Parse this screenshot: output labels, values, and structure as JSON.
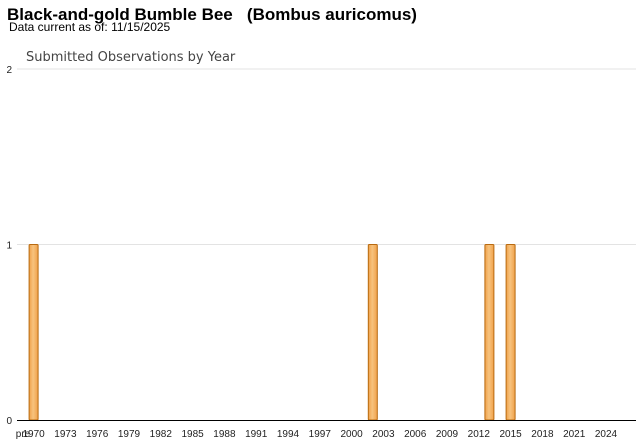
{
  "header": {
    "title": "Black-and-gold Bumble Bee   (Bombus auricomus)",
    "data_current_label": "Data current as of:",
    "data_current_date": "11/15/2025"
  },
  "colors": {
    "bar_fill": "#f0a14a",
    "bar_highlight": "#f7c37e",
    "bar_stroke": "#b86a10",
    "grid": "#e3e3e3",
    "axis": "#000000"
  },
  "chart_data": {
    "type": "bar",
    "title": "Submitted Observations by Year",
    "xlabel": "",
    "ylabel": "",
    "ylim": [
      0,
      2
    ],
    "y_ticks": [
      0,
      1,
      2
    ],
    "grid": true,
    "x_tick_labels": [
      "pre",
      "1970",
      "1973",
      "1976",
      "1979",
      "1982",
      "1985",
      "1988",
      "1991",
      "1994",
      "1997",
      "2000",
      "2003",
      "2006",
      "2009",
      "2012",
      "2015",
      "2018",
      "2021",
      "2024"
    ],
    "categories": [
      "pre",
      "1970",
      "1971",
      "1972",
      "1973",
      "1974",
      "1975",
      "1976",
      "1977",
      "1978",
      "1979",
      "1980",
      "1981",
      "1982",
      "1983",
      "1984",
      "1985",
      "1986",
      "1987",
      "1988",
      "1989",
      "1990",
      "1991",
      "1992",
      "1993",
      "1994",
      "1995",
      "1996",
      "1997",
      "1998",
      "1999",
      "2000",
      "2001",
      "2002",
      "2003",
      "2004",
      "2005",
      "2006",
      "2007",
      "2008",
      "2009",
      "2010",
      "2011",
      "2012",
      "2013",
      "2014",
      "2015",
      "2016",
      "2017",
      "2018",
      "2019",
      "2020",
      "2021",
      "2022",
      "2023",
      "2024",
      "2025"
    ],
    "values": [
      0,
      1,
      0,
      0,
      0,
      0,
      0,
      0,
      0,
      0,
      0,
      0,
      0,
      0,
      0,
      0,
      0,
      0,
      0,
      0,
      0,
      0,
      0,
      0,
      0,
      0,
      0,
      0,
      0,
      0,
      0,
      0,
      0,
      1,
      0,
      0,
      0,
      0,
      0,
      0,
      0,
      0,
      0,
      0,
      1,
      0,
      1,
      0,
      0,
      0,
      0,
      0,
      0,
      0,
      0,
      0,
      0
    ]
  }
}
